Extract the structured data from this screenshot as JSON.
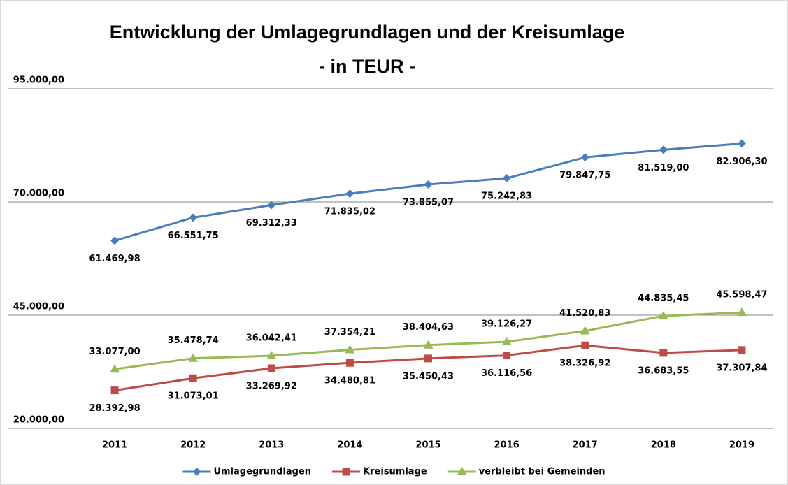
{
  "chart_data": {
    "type": "line",
    "title": "Entwicklung der Umlagegrundlagen und der Kreisumlage",
    "subtitle": "- in TEUR -",
    "categories": [
      "2011",
      "2012",
      "2013",
      "2014",
      "2015",
      "2016",
      "2017",
      "2018",
      "2019"
    ],
    "series": [
      {
        "name": "Umlagegrundlagen",
        "color": "#4a7ebb",
        "marker": "diamond",
        "values": [
          61469.98,
          66551.75,
          69312.33,
          71835.02,
          73855.07,
          75242.83,
          79847.75,
          81519.0,
          82906.3
        ],
        "value_labels": [
          "61.469,98",
          "66.551,75",
          "69.312,33",
          "71.835,02",
          "73.855,07",
          "75.242,83",
          "79.847,75",
          "81.519,00",
          "82.906,30"
        ]
      },
      {
        "name": "Kreisumlage",
        "color": "#be4b48",
        "marker": "square",
        "values": [
          28392.98,
          31073.01,
          33269.92,
          34480.81,
          35450.43,
          36116.56,
          38326.92,
          36683.55,
          37307.84
        ],
        "value_labels": [
          "28.392,98",
          "31.073,01",
          "33.269,92",
          "34.480,81",
          "35.450,43",
          "36.116,56",
          "38.326,92",
          "36.683,55",
          "37.307,84"
        ]
      },
      {
        "name": "verbleibt bei Gemeinden",
        "color": "#98b954",
        "marker": "triangle",
        "values": [
          33077.0,
          35478.74,
          36042.41,
          37354.21,
          38404.63,
          39126.27,
          41520.83,
          44835.45,
          45598.47
        ],
        "value_labels": [
          "33.077,00",
          "35.478,74",
          "36.042,41",
          "37.354,21",
          "38.404,63",
          "39.126,27",
          "41.520,83",
          "44.835,45",
          "45.598,47"
        ]
      }
    ],
    "ylim": [
      20000,
      95000
    ],
    "yticks": [
      {
        "value": 20000,
        "label": "20.000,00"
      },
      {
        "value": 45000,
        "label": "45.000,00"
      },
      {
        "value": 70000,
        "label": "70.000,00"
      },
      {
        "value": 95000,
        "label": "95.000,00"
      }
    ],
    "grid": true,
    "legend": "bottom"
  }
}
